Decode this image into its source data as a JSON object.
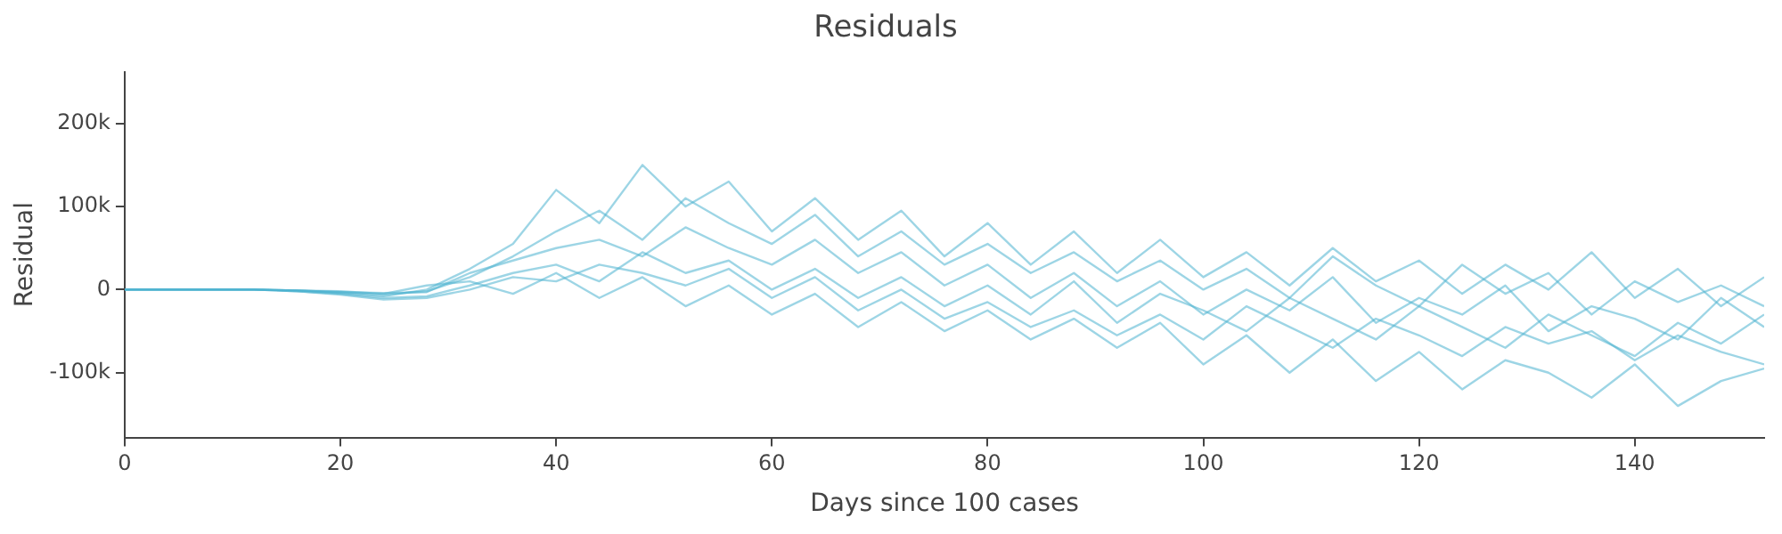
{
  "chart_data": {
    "type": "line",
    "title": "Residuals",
    "xlabel": "Days since 100 cases",
    "ylabel": "Residual",
    "x": [
      0,
      4,
      8,
      12,
      16,
      20,
      24,
      28,
      32,
      36,
      40,
      44,
      48,
      52,
      56,
      60,
      64,
      68,
      72,
      76,
      80,
      84,
      88,
      92,
      96,
      100,
      104,
      108,
      112,
      116,
      120,
      124,
      128,
      132,
      136,
      140,
      144,
      148,
      152
    ],
    "xlim": [
      0,
      152
    ],
    "xticks": [
      0,
      20,
      40,
      60,
      80,
      100,
      120,
      140
    ],
    "ylim": [
      -178000,
      262000
    ],
    "yticks": [
      {
        "value": -100000,
        "label": "-100k"
      },
      0,
      {
        "value": 100000,
        "label": "100k"
      },
      {
        "value": 200000,
        "label": "200k"
      }
    ],
    "grid": false,
    "legend": false,
    "series": [
      {
        "color": "#4db3cf",
        "values": [
          0,
          0,
          0,
          0,
          -1000,
          -3000,
          -6000,
          -2000,
          15000,
          40000,
          70000,
          95000,
          60000,
          110000,
          80000,
          55000,
          90000,
          40000,
          70000,
          30000,
          55000,
          20000,
          45000,
          10000,
          35000,
          0,
          25000,
          -10000,
          40000,
          5000,
          -20000,
          30000,
          -5000,
          20000,
          -30000,
          10000,
          -15000,
          5000,
          -20000
        ]
      },
      {
        "color": "#4db3cf",
        "values": [
          0,
          0,
          0,
          0,
          -2000,
          -5000,
          -10000,
          -8000,
          5000,
          20000,
          30000,
          10000,
          45000,
          20000,
          35000,
          0,
          25000,
          -10000,
          15000,
          -20000,
          5000,
          -30000,
          10000,
          -40000,
          -5000,
          -25000,
          -50000,
          -10000,
          -35000,
          -60000,
          -20000,
          -45000,
          -70000,
          -30000,
          -55000,
          -80000,
          -40000,
          -65000,
          -30000
        ]
      },
      {
        "color": "#4db3cf",
        "values": [
          0,
          0,
          0,
          0,
          -1000,
          -4000,
          -8000,
          0,
          25000,
          55000,
          120000,
          80000,
          150000,
          100000,
          130000,
          70000,
          110000,
          60000,
          95000,
          40000,
          80000,
          30000,
          70000,
          20000,
          60000,
          15000,
          45000,
          5000,
          50000,
          10000,
          35000,
          -5000,
          30000,
          0,
          45000,
          -10000,
          25000,
          -20000,
          15000
        ]
      },
      {
        "color": "#4db3cf",
        "values": [
          0,
          0,
          0,
          0,
          -1000,
          -2000,
          -5000,
          5000,
          10000,
          -5000,
          20000,
          -10000,
          15000,
          -20000,
          5000,
          -30000,
          -5000,
          -45000,
          -15000,
          -50000,
          -25000,
          -60000,
          -35000,
          -70000,
          -40000,
          -90000,
          -55000,
          -100000,
          -60000,
          -110000,
          -75000,
          -120000,
          -85000,
          -100000,
          -130000,
          -90000,
          -140000,
          -110000,
          -95000
        ]
      },
      {
        "color": "#4db3cf",
        "values": [
          0,
          0,
          0,
          0,
          -1000,
          -3000,
          -4000,
          -3000,
          20000,
          35000,
          50000,
          60000,
          40000,
          75000,
          50000,
          30000,
          60000,
          20000,
          45000,
          5000,
          30000,
          -10000,
          20000,
          -20000,
          10000,
          -30000,
          0,
          -25000,
          15000,
          -40000,
          -10000,
          -30000,
          5000,
          -50000,
          -20000,
          -35000,
          -60000,
          -10000,
          -45000
        ]
      },
      {
        "color": "#4db3cf",
        "values": [
          0,
          0,
          0,
          0,
          -2000,
          -6000,
          -12000,
          -10000,
          0,
          15000,
          10000,
          30000,
          20000,
          5000,
          25000,
          -10000,
          15000,
          -25000,
          0,
          -35000,
          -15000,
          -45000,
          -25000,
          -55000,
          -30000,
          -60000,
          -20000,
          -45000,
          -70000,
          -35000,
          -55000,
          -80000,
          -45000,
          -65000,
          -50000,
          -85000,
          -55000,
          -75000,
          -90000
        ]
      }
    ]
  }
}
